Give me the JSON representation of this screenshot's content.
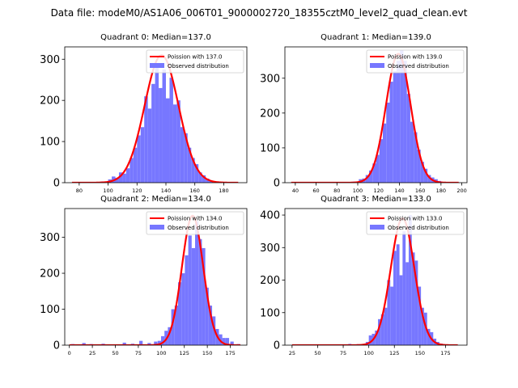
{
  "figure": {
    "suptitle": "Data file: modeM0/AS1A06_006T01_9000002720_18355cztM0_level2_quad_clean.evt"
  },
  "colors": {
    "curve": "#ff0000",
    "bars": "#7777ff",
    "axes": "#000000",
    "background": "#ffffff"
  },
  "chart_data": [
    {
      "type": "bar",
      "title": "Quadrant 0: Median=137.0",
      "median": 137.0,
      "xlim": [
        70,
        196
      ],
      "ylim": [
        0,
        330
      ],
      "xticks": [
        80,
        100,
        120,
        140,
        160,
        180
      ],
      "yticks": [
        0,
        100,
        200,
        300
      ],
      "bin_width": 2.5,
      "bins": [
        [
          75,
          1
        ],
        [
          85,
          2
        ],
        [
          95,
          3
        ],
        [
          100,
          8
        ],
        [
          102.5,
          15
        ],
        [
          105,
          12
        ],
        [
          107.5,
          25
        ],
        [
          110,
          22
        ],
        [
          112.5,
          35
        ],
        [
          115,
          60
        ],
        [
          117.5,
          85
        ],
        [
          120,
          115
        ],
        [
          122.5,
          135
        ],
        [
          125,
          210
        ],
        [
          127.5,
          180
        ],
        [
          130,
          240
        ],
        [
          132.5,
          285
        ],
        [
          135,
          230
        ],
        [
          137.5,
          275
        ],
        [
          140,
          205
        ],
        [
          142.5,
          255
        ],
        [
          145,
          190
        ],
        [
          147.5,
          200
        ],
        [
          150,
          135
        ],
        [
          152.5,
          120
        ],
        [
          155,
          85
        ],
        [
          157.5,
          60
        ],
        [
          160,
          45
        ],
        [
          162.5,
          25
        ],
        [
          165,
          18
        ],
        [
          167.5,
          10
        ],
        [
          170,
          5
        ],
        [
          175,
          3
        ],
        [
          185,
          2
        ]
      ],
      "curve": {
        "mean": 137.0,
        "peak": 310,
        "range": [
          75,
          190
        ],
        "label": "Poission with 137.0"
      },
      "legend": {
        "curve_label": "Poission with 137.0",
        "bar_label": "Observed distribution",
        "position": "upper-right"
      }
    },
    {
      "type": "bar",
      "title": "Quadrant 1: Median=139.0",
      "median": 139.0,
      "xlim": [
        30,
        205
      ],
      "ylim": [
        0,
        390
      ],
      "xticks": [
        40,
        60,
        80,
        100,
        120,
        140,
        160,
        180,
        200
      ],
      "yticks": [
        0,
        100,
        200,
        300
      ],
      "bin_width": 3.3,
      "bins": [
        [
          45,
          1
        ],
        [
          60,
          1
        ],
        [
          80,
          1
        ],
        [
          95,
          3
        ],
        [
          101,
          10
        ],
        [
          104.3,
          12
        ],
        [
          107.6,
          22
        ],
        [
          110.9,
          35
        ],
        [
          114.2,
          55
        ],
        [
          117.5,
          80
        ],
        [
          120.8,
          125
        ],
        [
          124.1,
          170
        ],
        [
          127.4,
          230
        ],
        [
          130.7,
          290
        ],
        [
          134,
          320
        ],
        [
          137.3,
          350
        ],
        [
          140.6,
          380
        ],
        [
          143.9,
          350
        ],
        [
          147.2,
          255
        ],
        [
          150.5,
          175
        ],
        [
          153.8,
          145
        ],
        [
          157.1,
          95
        ],
        [
          160.4,
          60
        ],
        [
          163.7,
          40
        ],
        [
          167,
          22
        ],
        [
          170.3,
          15
        ],
        [
          173.6,
          10
        ],
        [
          176.9,
          5
        ],
        [
          185,
          2
        ],
        [
          195,
          1
        ]
      ],
      "curve": {
        "mean": 139.0,
        "peak": 370,
        "range": [
          36,
          197
        ],
        "label": "Poission with 139.0"
      },
      "legend": {
        "curve_label": "Poission with 139.0",
        "bar_label": "Observed distribution",
        "position": "upper-right"
      }
    },
    {
      "type": "bar",
      "title": "Quadrant 2: Median=134.0",
      "median": 134.0,
      "xlim": [
        -5,
        193
      ],
      "ylim": [
        0,
        380
      ],
      "xticks": [
        0,
        25,
        50,
        75,
        100,
        125,
        150,
        175
      ],
      "yticks": [
        0,
        100,
        200,
        300
      ],
      "bin_width": 3.7,
      "bins": [
        [
          2,
          3
        ],
        [
          14,
          6
        ],
        [
          22,
          3
        ],
        [
          35,
          4
        ],
        [
          45,
          2
        ],
        [
          58,
          7
        ],
        [
          67,
          4
        ],
        [
          76,
          12
        ],
        [
          85,
          6
        ],
        [
          92,
          10
        ],
        [
          96,
          12
        ],
        [
          99.7,
          25
        ],
        [
          103.4,
          40
        ],
        [
          107.1,
          50
        ],
        [
          110.8,
          100
        ],
        [
          114.5,
          110
        ],
        [
          118.2,
          175
        ],
        [
          121.9,
          200
        ],
        [
          125.6,
          250
        ],
        [
          129.3,
          305
        ],
        [
          133,
          270
        ],
        [
          136.7,
          345
        ],
        [
          140.4,
          295
        ],
        [
          144.1,
          270
        ],
        [
          147.8,
          160
        ],
        [
          151.5,
          110
        ],
        [
          155.2,
          80
        ],
        [
          158.9,
          45
        ],
        [
          162.6,
          30
        ],
        [
          166.3,
          20
        ],
        [
          170,
          20
        ],
        [
          175,
          10
        ],
        [
          182,
          3
        ]
      ],
      "curve": {
        "mean": 134.0,
        "peak": 360,
        "range": [
          0,
          186
        ],
        "label": "Poission with 134.0"
      },
      "legend": {
        "curve_label": "Poission with 134.0",
        "bar_label": "Observed distribution",
        "position": "upper-right"
      }
    },
    {
      "type": "bar",
      "title": "Quadrant 3: Median=133.0",
      "median": 133.0,
      "xlim": [
        18,
        196
      ],
      "ylim": [
        0,
        420
      ],
      "xticks": [
        25,
        50,
        75,
        100,
        125,
        150,
        175
      ],
      "yticks": [
        0,
        100,
        200,
        300,
        400
      ],
      "bin_width": 3.0,
      "bins": [
        [
          27,
          2
        ],
        [
          80,
          4
        ],
        [
          88,
          3
        ],
        [
          97,
          10
        ],
        [
          100,
          30
        ],
        [
          103,
          35
        ],
        [
          106,
          45
        ],
        [
          109,
          80
        ],
        [
          112,
          95
        ],
        [
          115,
          115
        ],
        [
          118,
          200
        ],
        [
          121,
          180
        ],
        [
          124,
          290
        ],
        [
          127,
          310
        ],
        [
          130,
          215
        ],
        [
          133,
          350
        ],
        [
          136,
          255
        ],
        [
          139,
          400
        ],
        [
          142,
          285
        ],
        [
          145,
          260
        ],
        [
          148,
          180
        ],
        [
          151,
          115
        ],
        [
          154,
          100
        ],
        [
          157,
          50
        ],
        [
          160,
          40
        ],
        [
          163,
          20
        ],
        [
          166,
          10
        ],
        [
          169,
          5
        ],
        [
          175,
          2
        ]
      ],
      "curve": {
        "mean": 133.0,
        "peak": 390,
        "range": [
          25,
          187
        ],
        "label": "Poission with 133.0"
      },
      "legend": {
        "curve_label": "Poission with 133.0",
        "bar_label": "Observed distribution",
        "position": "upper-right"
      }
    }
  ]
}
